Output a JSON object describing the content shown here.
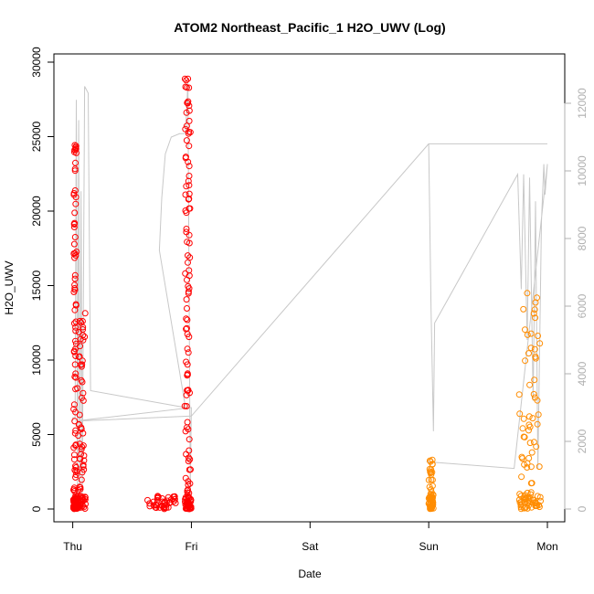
{
  "chart_data": {
    "type": "scatter",
    "title": "ATOM2 Northeast_Pacific_1 H2O_UWV (Log)",
    "xlabel": "Date",
    "ylabel": "H2O_UWV",
    "x_ticks": [
      "Thu",
      "Fri",
      "Sat",
      "Sun",
      "Mon"
    ],
    "x_range_days": [
      0,
      4.08
    ],
    "ylim_left": [
      0,
      30000
    ],
    "y_ticks_left": [
      0,
      5000,
      10000,
      15000,
      20000,
      25000,
      30000
    ],
    "ylim_right": [
      0,
      12800
    ],
    "y_ticks_right": [
      0,
      2000,
      4000,
      6000,
      8000,
      10000,
      12000
    ],
    "grid": false,
    "colors": {
      "series_red": "#ff0000",
      "series_orange": "#ff8c00",
      "secondary_line": "#c8c8c8",
      "right_axis": "#b0b0b0"
    },
    "series": [
      {
        "color": "red",
        "marker": "open-circle",
        "clusters": [
          {
            "x_center": 0.02,
            "x_spread": 0.015,
            "y_levels": [
              23000,
              24000,
              24500,
              20000,
              18000,
              16000,
              14500,
              11000,
              7000,
              3000,
              1500,
              800,
              300
            ]
          },
          {
            "x_center": 0.07,
            "x_spread": 0.04,
            "y_levels": [
              13500,
              12000,
              11000,
              8700,
              7300,
              5000,
              4000,
              3000,
              2000,
              1000,
              500,
              100
            ]
          },
          {
            "x_center": 0.75,
            "x_spread": 0.12,
            "y_levels": [
              500,
              300,
              200,
              100
            ]
          },
          {
            "x_center": 0.97,
            "x_spread": 0.03,
            "y_levels": [
              29500,
              28000,
              26500,
              25000,
              23000,
              21000,
              19000,
              17000,
              15000,
              13000,
              11000,
              9000,
              7000,
              5000,
              3000,
              1500,
              500,
              100
            ]
          }
        ]
      },
      {
        "color": "orange",
        "marker": "open-circle",
        "clusters": [
          {
            "x_center": 3.02,
            "x_spread": 0.02,
            "y_levels": [
              3600,
              3000,
              2500,
              2000,
              1500,
              1000,
              500,
              200,
              50
            ]
          },
          {
            "x_center": 3.85,
            "x_spread": 0.1,
            "y_levels": [
              14700,
              13000,
              11000,
              9000,
              7000,
              6000,
              5000,
              4000,
              3000,
              2000,
              1000,
              500,
              100
            ]
          }
        ]
      }
    ],
    "secondary_line": {
      "axis": "right",
      "points": [
        [
          0.0,
          2600
        ],
        [
          0.0,
          2700
        ],
        [
          0.02,
          2700
        ],
        [
          0.03,
          12100
        ],
        [
          0.04,
          400
        ],
        [
          0.05,
          11500
        ],
        [
          0.06,
          700
        ],
        [
          0.07,
          9400
        ],
        [
          0.08,
          300
        ],
        [
          0.1,
          12500
        ],
        [
          0.13,
          12300
        ],
        [
          0.15,
          3500
        ],
        [
          0.95,
          3000
        ],
        [
          0.73,
          7650
        ],
        [
          0.75,
          9200
        ],
        [
          0.78,
          10500
        ],
        [
          0.83,
          11000
        ],
        [
          0.9,
          11100
        ],
        [
          0.95,
          11100
        ],
        [
          0.97,
          12600
        ],
        [
          0.99,
          600
        ],
        [
          1.0,
          3000
        ],
        [
          0.02,
          2600
        ],
        [
          1.0,
          2750
        ],
        [
          3.0,
          10800
        ],
        [
          3.05,
          10800
        ],
        [
          3.98,
          10800
        ],
        [
          4.0,
          10800
        ],
        [
          3.0,
          10800
        ],
        [
          3.02,
          5900
        ],
        [
          3.04,
          2300
        ],
        [
          3.05,
          5500
        ],
        [
          3.75,
          9900
        ],
        [
          3.78,
          6500
        ],
        [
          3.8,
          9900
        ],
        [
          3.83,
          5000
        ],
        [
          3.85,
          9800
        ],
        [
          3.88,
          3200
        ],
        [
          3.9,
          9100
        ],
        [
          3.92,
          1200
        ],
        [
          3.95,
          8500
        ],
        [
          3.97,
          10200
        ],
        [
          3.98,
          9300
        ],
        [
          4.0,
          10200
        ],
        [
          3.72,
          1200
        ],
        [
          2.98,
          1400
        ]
      ]
    }
  }
}
